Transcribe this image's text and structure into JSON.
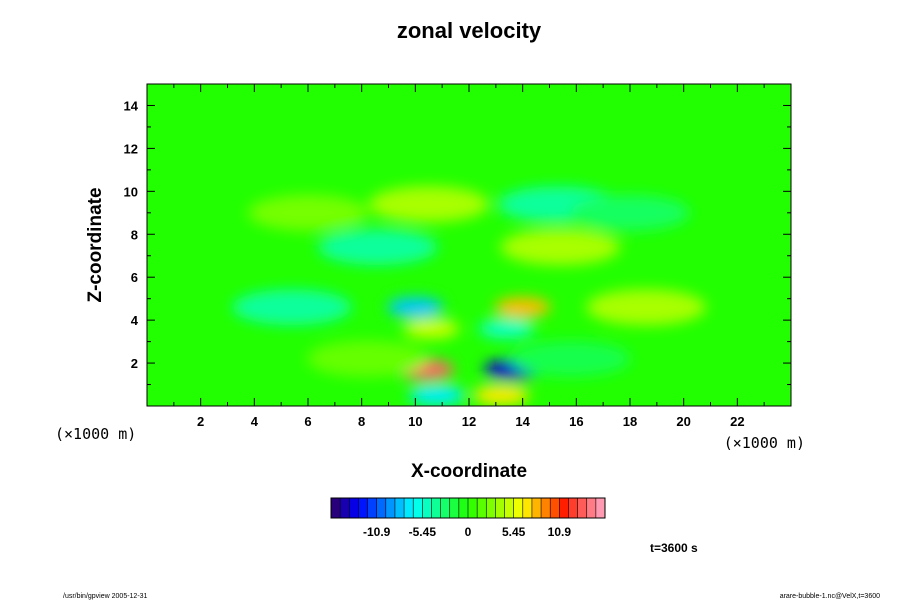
{
  "chart_data": {
    "type": "heatmap",
    "title": "zonal velocity",
    "xlabel": "X-coordinate",
    "ylabel": "Z-coordinate",
    "x_unit": "(×1000 m)",
    "y_unit": "(×1000 m)",
    "xlim": [
      0,
      24
    ],
    "ylim": [
      0,
      15
    ],
    "xticks": [
      "2",
      "4",
      "6",
      "8",
      "10",
      "12",
      "14",
      "16",
      "18",
      "20",
      "22"
    ],
    "yticks": [
      "2",
      "4",
      "6",
      "8",
      "10",
      "12",
      "14"
    ],
    "colorbar": {
      "min": -16.35,
      "max": 16.35,
      "tick_values": [
        -10.9,
        -5.45,
        0,
        5.45,
        10.9
      ],
      "tick_labels": [
        "-10.9",
        "-5.45",
        "0",
        "5.45",
        "10.9"
      ],
      "levels": 30
    },
    "field_features": [
      {
        "x": 10.4,
        "z": 1.7,
        "value": 14
      },
      {
        "x": 13.6,
        "z": 1.7,
        "value": -14
      },
      {
        "x": 10.8,
        "z": 0.5,
        "value": -7
      },
      {
        "x": 13.2,
        "z": 0.5,
        "value": 7
      },
      {
        "x": 10.0,
        "z": 4.6,
        "value": -8
      },
      {
        "x": 14.0,
        "z": 4.6,
        "value": 8
      },
      {
        "x": 10.6,
        "z": 3.6,
        "value": 5
      },
      {
        "x": 13.4,
        "z": 3.6,
        "value": -5
      },
      {
        "x": 5.4,
        "z": 4.6,
        "value": -4
      },
      {
        "x": 18.6,
        "z": 4.6,
        "value": 4
      },
      {
        "x": 8.6,
        "z": 7.4,
        "value": -4
      },
      {
        "x": 15.4,
        "z": 7.4,
        "value": 4
      },
      {
        "x": 10.5,
        "z": 9.4,
        "value": 4
      },
      {
        "x": 15.3,
        "z": 9.4,
        "value": -4
      },
      {
        "x": 6.0,
        "z": 9.0,
        "value": 2.5
      },
      {
        "x": 18.0,
        "z": 9.0,
        "value": -2.5
      },
      {
        "x": 8.2,
        "z": 2.2,
        "value": 2
      },
      {
        "x": 15.8,
        "z": 2.2,
        "value": -2
      }
    ]
  },
  "annotations": {
    "time": "t=3600 s",
    "footer_left": "/usr/bin/gpview 2005-12-31",
    "footer_right": "arare-bubble-1.nc@VelX,t=3600"
  }
}
